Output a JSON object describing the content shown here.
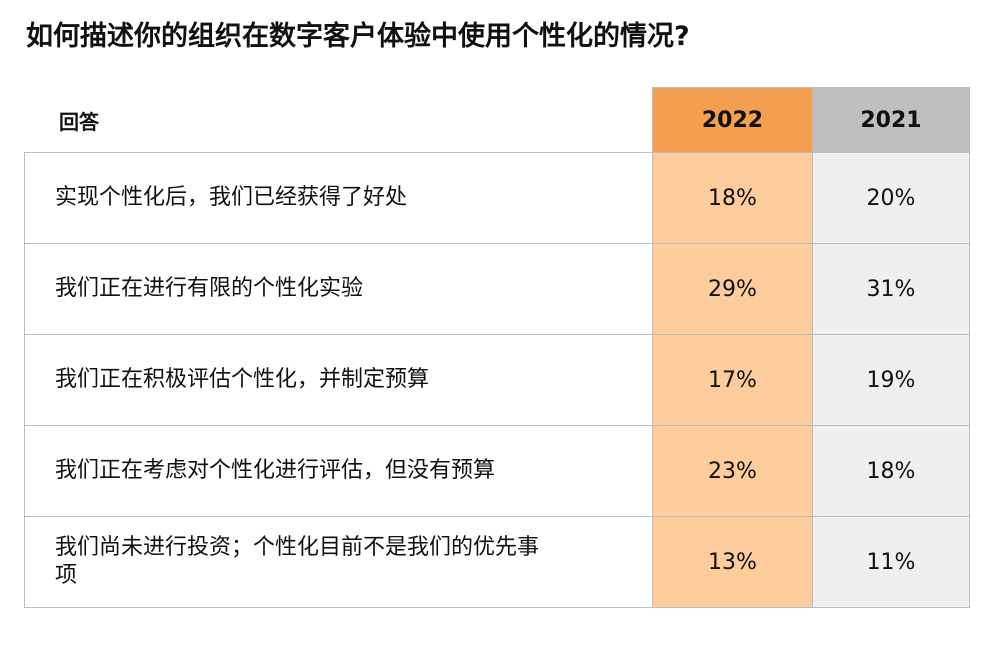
{
  "title": "如何描述你的组织在数字客户体验中使用个性化的情况?",
  "chart_data": {
    "type": "table",
    "title": "如何描述你的组织在数字客户体验中使用个性化的情况?",
    "columns": [
      "回答",
      "2022",
      "2021"
    ],
    "rows": [
      {
        "response": "实现个性化后，我们已经获得了好处",
        "y2022": "18%",
        "y2021": "20%"
      },
      {
        "response": "我们正在进行有限的个性化实验",
        "y2022": "29%",
        "y2021": "31%"
      },
      {
        "response": "我们正在积极评估个性化，并制定预算",
        "y2022": "17%",
        "y2021": "19%"
      },
      {
        "response": "我们正在考虑对个性化进行评估，但没有预算",
        "y2022": "23%",
        "y2021": "18%"
      },
      {
        "response": "我们尚未进行投资；个性化目前不是我们的优先事项",
        "y2022": "13%",
        "y2021": "11%"
      }
    ],
    "series": [
      {
        "name": "2022",
        "values": [
          18,
          29,
          17,
          23,
          13
        ]
      },
      {
        "name": "2021",
        "values": [
          20,
          31,
          19,
          18,
          11
        ]
      }
    ],
    "colors": {
      "header_2022": "#f39f4f",
      "cell_2022": "#fdcc9c",
      "header_2021": "#bfbfbf",
      "cell_2021": "#efefef"
    }
  }
}
